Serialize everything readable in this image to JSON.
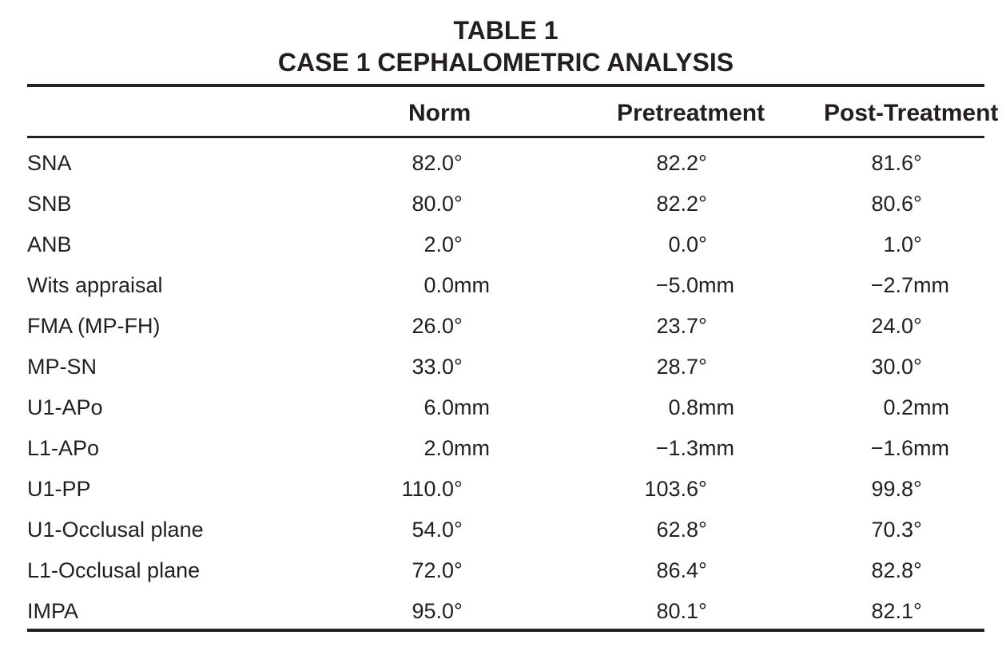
{
  "title": {
    "line1": "TABLE 1",
    "line2": "CASE 1 CEPHALOMETRIC ANALYSIS"
  },
  "columns": [
    "Norm",
    "Pretreatment",
    "Post-Treatment"
  ],
  "rows": [
    {
      "label": "SNA",
      "norm": {
        "num": "82.0",
        "unit": "°"
      },
      "pre": {
        "num": "82.2",
        "unit": "°"
      },
      "post": {
        "num": "81.6",
        "unit": "°"
      }
    },
    {
      "label": "SNB",
      "norm": {
        "num": "80.0",
        "unit": "°"
      },
      "pre": {
        "num": "82.2",
        "unit": "°"
      },
      "post": {
        "num": "80.6",
        "unit": "°"
      }
    },
    {
      "label": "ANB",
      "norm": {
        "num": "2.0",
        "unit": "°"
      },
      "pre": {
        "num": "0.0",
        "unit": "°"
      },
      "post": {
        "num": "1.0",
        "unit": "°"
      }
    },
    {
      "label": "Wits appraisal",
      "norm": {
        "num": "0.0",
        "unit": "mm"
      },
      "pre": {
        "num": "−5.0",
        "unit": "mm"
      },
      "post": {
        "num": "−2.7",
        "unit": "mm"
      }
    },
    {
      "label": "FMA (MP-FH)",
      "norm": {
        "num": "26.0",
        "unit": "°"
      },
      "pre": {
        "num": "23.7",
        "unit": "°"
      },
      "post": {
        "num": "24.0",
        "unit": "°"
      }
    },
    {
      "label": "MP-SN",
      "norm": {
        "num": "33.0",
        "unit": "°"
      },
      "pre": {
        "num": "28.7",
        "unit": "°"
      },
      "post": {
        "num": "30.0",
        "unit": "°"
      }
    },
    {
      "label": "U1-APo",
      "norm": {
        "num": "6.0",
        "unit": "mm"
      },
      "pre": {
        "num": "0.8",
        "unit": "mm"
      },
      "post": {
        "num": "0.2",
        "unit": "mm"
      }
    },
    {
      "label": "L1-APo",
      "norm": {
        "num": "2.0",
        "unit": "mm"
      },
      "pre": {
        "num": "−1.3",
        "unit": "mm"
      },
      "post": {
        "num": "−1.6",
        "unit": "mm"
      }
    },
    {
      "label": "U1-PP",
      "norm": {
        "num": "110.0",
        "unit": "°"
      },
      "pre": {
        "num": "103.6",
        "unit": "°"
      },
      "post": {
        "num": "99.8",
        "unit": "°"
      }
    },
    {
      "label": "U1-Occlusal plane",
      "norm": {
        "num": "54.0",
        "unit": "°"
      },
      "pre": {
        "num": "62.8",
        "unit": "°"
      },
      "post": {
        "num": "70.3",
        "unit": "°"
      }
    },
    {
      "label": "L1-Occlusal plane",
      "norm": {
        "num": "72.0",
        "unit": "°"
      },
      "pre": {
        "num": "86.4",
        "unit": "°"
      },
      "post": {
        "num": "82.8",
        "unit": "°"
      }
    },
    {
      "label": "IMPA",
      "norm": {
        "num": "95.0",
        "unit": "°"
      },
      "pre": {
        "num": "80.1",
        "unit": "°"
      },
      "post": {
        "num": "82.1",
        "unit": "°"
      }
    }
  ]
}
